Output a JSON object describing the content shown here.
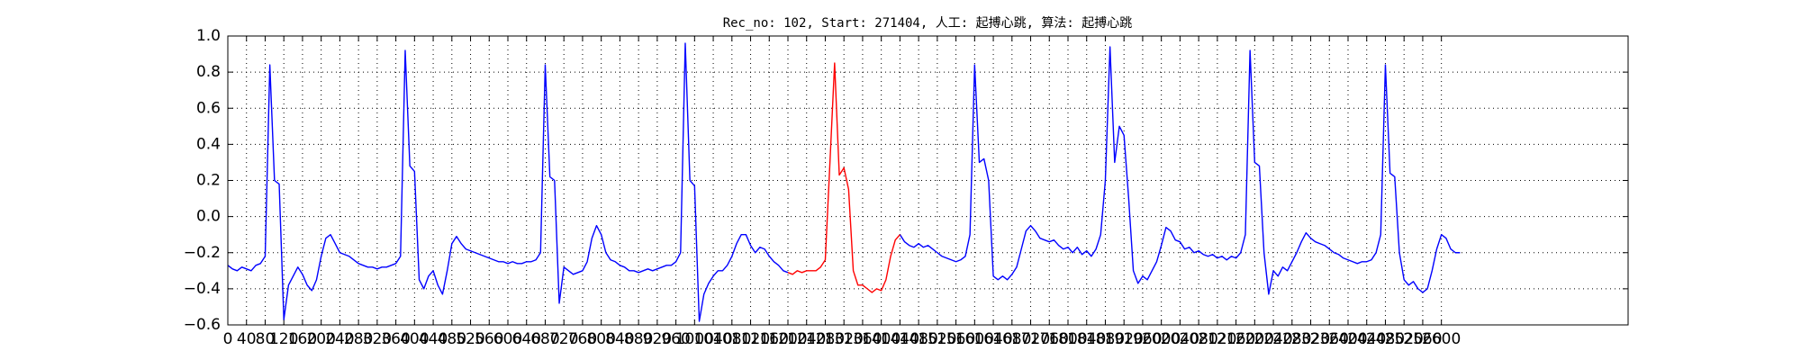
{
  "chart_data": {
    "type": "line",
    "title": "Rec_no: 102, Start: 271404, 人工: 起搏心跳, 算法: 起搏心跳",
    "x": [
      0,
      10,
      20,
      30,
      40,
      50,
      60,
      70,
      80,
      90,
      100,
      110,
      120,
      130,
      140,
      150,
      160,
      170,
      180,
      190,
      200,
      210,
      220,
      230,
      240,
      250,
      260,
      270,
      280,
      290,
      300,
      310,
      320,
      330,
      340,
      350,
      360,
      370,
      380,
      390,
      400,
      410,
      420,
      430,
      440,
      450,
      460,
      470,
      480,
      490,
      500,
      510,
      520,
      530,
      540,
      550,
      560,
      570,
      580,
      590,
      600,
      610,
      620,
      630,
      640,
      650,
      660,
      670,
      680,
      690,
      700,
      710,
      720,
      730,
      740,
      750,
      760,
      770,
      780,
      790,
      800,
      810,
      820,
      830,
      840,
      850,
      860,
      870,
      880,
      890,
      900,
      910,
      920,
      930,
      940,
      950,
      960,
      970,
      980,
      990,
      1000,
      1010,
      1020,
      1030,
      1040,
      1050,
      1060,
      1070,
      1080,
      1090,
      1100,
      1110,
      1120,
      1130,
      1140,
      1150,
      1160,
      1170,
      1180,
      1190,
      1200,
      1210,
      1220,
      1230,
      1240,
      1250,
      1260,
      1270,
      1280,
      1290,
      1300,
      1310,
      1320,
      1330,
      1340,
      1350,
      1360,
      1370,
      1380,
      1390,
      1400,
      1410,
      1420,
      1430,
      1440,
      1450,
      1460,
      1470,
      1480,
      1490,
      1500,
      1510,
      1520,
      1530,
      1540,
      1550,
      1560,
      1570,
      1580,
      1590,
      1600,
      1610,
      1620,
      1630,
      1640,
      1650,
      1660,
      1670,
      1680,
      1690,
      1700,
      1710,
      1720,
      1730,
      1740,
      1750,
      1760,
      1770,
      1780,
      1790,
      1800,
      1810,
      1820,
      1830,
      1840,
      1850,
      1860,
      1870,
      1880,
      1890,
      1900,
      1910,
      1920,
      1930,
      1940,
      1950,
      1960,
      1970,
      1980,
      1990,
      2000,
      2010,
      2020,
      2030,
      2040,
      2050,
      2060,
      2070,
      2080,
      2090,
      2100,
      2110,
      2120,
      2130,
      2140,
      2150,
      2160,
      2170,
      2180,
      2190,
      2200,
      2210,
      2220,
      2230,
      2240,
      2250,
      2260,
      2270,
      2280,
      2290,
      2300,
      2310,
      2320,
      2330,
      2340,
      2350,
      2360,
      2370,
      2380,
      2390,
      2400,
      2410,
      2420,
      2430,
      2440,
      2450,
      2460,
      2470,
      2480,
      2490,
      2500,
      2510,
      2520,
      2530,
      2540,
      2550,
      2560,
      2570,
      2580,
      2590,
      2600,
      2610,
      2620,
      2630,
      2640
    ],
    "series": [
      {
        "color": "#0000ff",
        "values": [
          -0.27,
          -0.29,
          -0.3,
          -0.28,
          -0.29,
          -0.3,
          -0.27,
          -0.26,
          -0.22,
          0.84,
          0.2,
          0.18,
          -0.57,
          -0.38,
          -0.33,
          -0.28,
          -0.32,
          -0.38,
          -0.41,
          -0.35,
          -0.22,
          -0.12,
          -0.1,
          -0.15,
          -0.2,
          -0.21,
          -0.22,
          -0.24,
          -0.26,
          -0.27,
          -0.28,
          -0.28,
          -0.29,
          -0.28,
          -0.28,
          -0.27,
          -0.26,
          -0.22,
          0.92,
          0.28,
          0.25,
          -0.35,
          -0.4,
          -0.33,
          -0.3,
          -0.38,
          -0.43,
          -0.3,
          -0.15,
          -0.11,
          -0.15,
          -0.18,
          -0.19,
          -0.2,
          -0.21,
          -0.22,
          -0.23,
          -0.24,
          -0.25,
          -0.25,
          -0.26,
          -0.25,
          -0.26,
          -0.26,
          -0.25,
          -0.25,
          -0.24,
          -0.2,
          0.84,
          0.22,
          0.2,
          -0.48,
          -0.28,
          -0.3,
          -0.32,
          -0.31,
          -0.3,
          -0.25,
          -0.12,
          -0.05,
          -0.1,
          -0.2,
          -0.24,
          -0.25,
          -0.27,
          -0.28,
          -0.3,
          -0.3,
          -0.31,
          -0.3,
          -0.29,
          -0.3,
          -0.29,
          -0.28,
          -0.27,
          -0.27,
          -0.25,
          -0.2,
          0.96,
          0.2,
          0.17,
          -0.58,
          -0.43,
          -0.37,
          -0.33,
          -0.3,
          -0.3,
          -0.27,
          -0.22,
          -0.15,
          -0.1,
          -0.1,
          -0.16,
          -0.2,
          -0.17,
          -0.18,
          -0.22,
          -0.25,
          -0.27,
          -0.3,
          -0.31,
          null,
          null,
          null,
          null,
          null,
          null,
          null,
          null,
          null,
          null,
          null,
          null,
          null,
          null,
          null,
          null,
          null,
          null,
          null,
          null,
          null,
          null,
          null,
          -0.1,
          -0.14,
          -0.16,
          -0.17,
          -0.15,
          -0.17,
          -0.16,
          -0.18,
          -0.2,
          -0.22,
          -0.23,
          -0.24,
          -0.25,
          -0.24,
          -0.22,
          -0.1,
          0.84,
          0.3,
          0.32,
          0.2,
          -0.33,
          -0.35,
          -0.33,
          -0.35,
          -0.32,
          -0.28,
          -0.18,
          -0.08,
          -0.05,
          -0.08,
          -0.12,
          -0.13,
          -0.14,
          -0.13,
          -0.16,
          -0.18,
          -0.17,
          -0.2,
          -0.17,
          -0.21,
          -0.19,
          -0.22,
          -0.18,
          -0.1,
          0.2,
          0.94,
          0.3,
          0.5,
          0.45,
          0.1,
          -0.3,
          -0.37,
          -0.33,
          -0.35,
          -0.3,
          -0.25,
          -0.16,
          -0.06,
          -0.08,
          -0.13,
          -0.14,
          -0.18,
          -0.17,
          -0.2,
          -0.19,
          -0.21,
          -0.22,
          -0.21,
          -0.23,
          -0.22,
          -0.24,
          -0.22,
          -0.23,
          -0.2,
          -0.1,
          0.92,
          0.3,
          0.28,
          -0.2,
          -0.43,
          -0.3,
          -0.33,
          -0.28,
          -0.3,
          -0.25,
          -0.2,
          -0.14,
          -0.09,
          -0.12,
          -0.14,
          -0.15,
          -0.16,
          -0.18,
          -0.2,
          -0.21,
          -0.23,
          -0.24,
          -0.25,
          -0.26,
          -0.25,
          -0.25,
          -0.24,
          -0.2,
          -0.1,
          0.84,
          0.24,
          0.22,
          -0.2,
          -0.35,
          -0.38,
          -0.36,
          -0.4,
          -0.42,
          -0.4,
          -0.3,
          -0.18,
          -0.1,
          -0.12,
          -0.18,
          -0.2,
          -0.2
        ]
      },
      {
        "color": "#ff0000",
        "x": [
          1200,
          1210,
          1220,
          1230,
          1240,
          1250,
          1260,
          1270,
          1280,
          1290,
          1300,
          1310,
          1320,
          1330,
          1340,
          1350,
          1360,
          1370,
          1380,
          1390,
          1400,
          1410,
          1420,
          1430,
          1440
        ],
        "values": [
          -0.31,
          -0.32,
          -0.3,
          -0.31,
          -0.3,
          -0.3,
          -0.3,
          -0.28,
          -0.24,
          0.3,
          0.85,
          0.23,
          0.27,
          0.15,
          -0.3,
          -0.38,
          -0.38,
          -0.4,
          -0.42,
          -0.4,
          -0.41,
          -0.35,
          -0.22,
          -0.13,
          -0.1
        ]
      }
    ],
    "xlim": [
      0,
      3000
    ],
    "xticks": [
      0,
      40,
      80,
      120,
      160,
      200,
      240,
      280,
      320,
      360,
      400,
      440,
      480,
      520,
      560,
      600,
      640,
      680,
      720,
      760,
      800,
      840,
      880,
      920,
      960,
      1000,
      1040,
      1080,
      1120,
      1160,
      1200,
      1240,
      1280,
      1320,
      1360,
      1400,
      1440,
      1480,
      1520,
      1560,
      1600,
      1640,
      1680,
      1720,
      1760,
      1800,
      1840,
      1880,
      1920,
      1960,
      2000,
      2040,
      2080,
      2120,
      2160,
      2200,
      2240,
      2280,
      2320,
      2360,
      2400,
      2440,
      2480,
      2520,
      2560,
      2600
    ],
    "ylim": [
      -0.6,
      1.0
    ],
    "yticks": [
      {
        "value": -0.6,
        "label": "−0.6"
      },
      {
        "value": -0.4,
        "label": "−0.4"
      },
      {
        "value": -0.2,
        "label": "−0.2"
      },
      {
        "value": 0,
        "label": "0.0"
      },
      0.2,
      0.4,
      0.6,
      0.8,
      {
        "value": 1,
        "label": "1.0"
      }
    ],
    "grid": true
  }
}
